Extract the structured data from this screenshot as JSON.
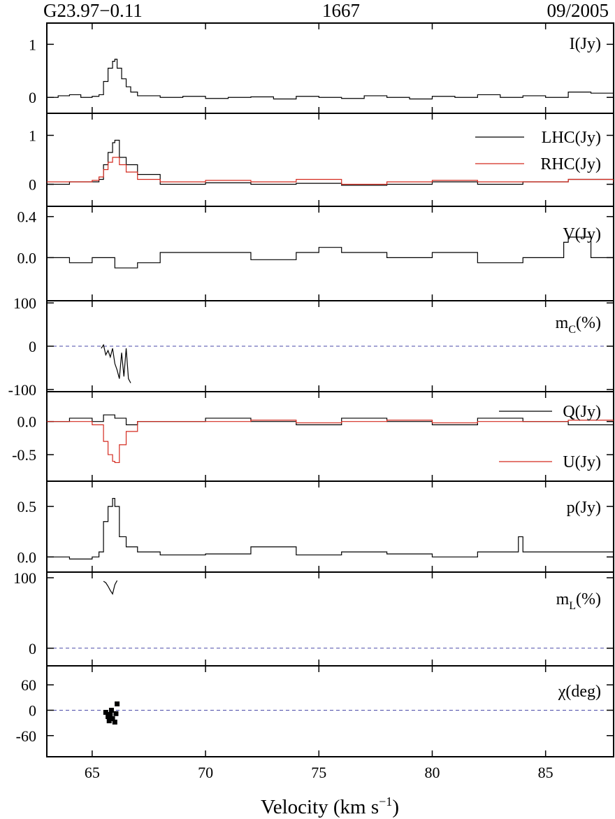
{
  "header": {
    "source": "G23.97−0.11",
    "transition": "1667",
    "epoch": "09/2005"
  },
  "x_axis": {
    "label": "Velocity (km s",
    "label_sup": "−1",
    "label_close": ")",
    "range": [
      63,
      88
    ],
    "ticks": [
      {
        "v": 65,
        "label": "65"
      },
      {
        "v": 70,
        "label": "70"
      },
      {
        "v": 75,
        "label": "75"
      },
      {
        "v": 80,
        "label": "80"
      },
      {
        "v": 85,
        "label": "85"
      }
    ]
  },
  "colors": {
    "lhc": "#000000",
    "rhc": "#d42a1f",
    "zero_line": "#4a4aa8"
  },
  "panels": [
    {
      "id": "stokes-i",
      "label": "I(Jy)",
      "ylim": [
        -0.3,
        1.4
      ],
      "yticks": [
        {
          "v": 1,
          "label": "1"
        },
        {
          "v": 0,
          "label": "0"
        }
      ],
      "legend": []
    },
    {
      "id": "lhc-rhc",
      "label": "",
      "ylim": [
        -0.45,
        1.45
      ],
      "yticks": [
        {
          "v": 1,
          "label": "1"
        },
        {
          "v": 0,
          "label": "0"
        }
      ],
      "legend": [
        {
          "name": "LHC(Jy)",
          "color": "#000000"
        },
        {
          "name": "RHC(Jy)",
          "color": "#d42a1f"
        }
      ]
    },
    {
      "id": "stokes-v",
      "label": "V(Jy)",
      "ylim": [
        -0.42,
        0.5
      ],
      "yticks": [
        {
          "v": 0.4,
          "label": "0.4"
        },
        {
          "v": 0.0,
          "label": "0.0"
        }
      ],
      "legend": []
    },
    {
      "id": "mc",
      "label": "m",
      "label_sub": "C",
      "label_end": "(%)",
      "ylim": [
        -105,
        105
      ],
      "yticks": [
        {
          "v": 100,
          "label": "100"
        },
        {
          "v": 0,
          "label": "0"
        },
        {
          "v": -100,
          "label": "-100"
        }
      ],
      "zero_line": true,
      "legend": []
    },
    {
      "id": "q-u",
      "label": "",
      "ylim": [
        -0.9,
        0.45
      ],
      "yticks": [
        {
          "v": 0.0,
          "label": "0.0"
        },
        {
          "v": -0.5,
          "label": "-0.5"
        }
      ],
      "legend": [
        {
          "name": "Q(Jy)",
          "color": "#000000"
        },
        {
          "name": "U(Jy)",
          "color": "#d42a1f"
        }
      ]
    },
    {
      "id": "p",
      "label": "p(Jy)",
      "ylim": [
        -0.15,
        0.75
      ],
      "yticks": [
        {
          "v": 0.5,
          "label": "0.5"
        },
        {
          "v": 0.0,
          "label": "0.0"
        }
      ],
      "legend": []
    },
    {
      "id": "ml",
      "label": "m",
      "label_sub": "L",
      "label_end": "(%)",
      "ylim": [
        -25,
        108
      ],
      "yticks": [
        {
          "v": 100,
          "label": "100"
        },
        {
          "v": 0,
          "label": "0"
        }
      ],
      "zero_line": true,
      "legend": []
    },
    {
      "id": "chi",
      "label": "χ(deg)",
      "ylim": [
        -110,
        105
      ],
      "yticks": [
        {
          "v": 60,
          "label": "60"
        },
        {
          "v": 0,
          "label": "0"
        },
        {
          "v": -60,
          "label": "-60"
        }
      ],
      "zero_line": true,
      "legend": []
    }
  ],
  "chart_data": {
    "type": "line",
    "title": "",
    "xlabel": "Velocity (km s−1)",
    "xlim": [
      63,
      88
    ],
    "panels": [
      {
        "name": "I(Jy)",
        "step": true,
        "series": [
          {
            "name": "I",
            "color": "#000000",
            "x": [
              63.0,
              63.5,
              64.0,
              64.5,
              65.0,
              65.3,
              65.5,
              65.7,
              65.9,
              66.0,
              66.1,
              66.3,
              66.5,
              66.7,
              67.0,
              68.0,
              69.0,
              70.0,
              71.0,
              72.0,
              73.0,
              74.0,
              75.0,
              76.0,
              77.0,
              78.0,
              79.0,
              80.0,
              81.0,
              82.0,
              83.0,
              84.0,
              85.0,
              86.0,
              87.0,
              88.0
            ],
            "y": [
              0.0,
              0.03,
              0.05,
              0.0,
              0.02,
              0.05,
              0.3,
              0.55,
              0.68,
              0.72,
              0.55,
              0.35,
              0.2,
              0.1,
              0.03,
              0.0,
              0.02,
              -0.02,
              0.0,
              0.01,
              -0.03,
              0.02,
              0.0,
              -0.02,
              0.03,
              0.0,
              -0.03,
              0.02,
              0.0,
              0.05,
              0.0,
              0.03,
              0.0,
              0.1,
              0.08,
              0.02
            ]
          }
        ]
      },
      {
        "name": "LHC / RHC",
        "step": true,
        "series": [
          {
            "name": "LHC(Jy)",
            "color": "#000000",
            "x": [
              63.0,
              64.0,
              65.0,
              65.3,
              65.5,
              65.7,
              65.9,
              66.0,
              66.2,
              66.5,
              67.0,
              68.0,
              70.0,
              72.0,
              74.0,
              76.0,
              78.0,
              80.0,
              82.0,
              84.0,
              86.0,
              88.0
            ],
            "y": [
              0.0,
              0.05,
              0.05,
              0.1,
              0.4,
              0.65,
              0.85,
              0.9,
              0.55,
              0.4,
              0.2,
              0.0,
              0.03,
              0.0,
              0.02,
              -0.02,
              0.0,
              0.05,
              0.0,
              0.05,
              0.1,
              0.0
            ]
          },
          {
            "name": "RHC(Jy)",
            "color": "#d42a1f",
            "x": [
              63.0,
              64.0,
              65.0,
              65.3,
              65.5,
              65.7,
              65.9,
              66.0,
              66.2,
              66.5,
              67.0,
              68.0,
              70.0,
              72.0,
              74.0,
              76.0,
              78.0,
              80.0,
              82.0,
              84.0,
              86.0,
              88.0
            ],
            "y": [
              0.05,
              0.05,
              0.08,
              0.15,
              0.3,
              0.45,
              0.55,
              0.55,
              0.4,
              0.25,
              0.1,
              0.05,
              0.08,
              0.05,
              0.1,
              0.0,
              0.05,
              0.08,
              0.05,
              0.05,
              0.1,
              0.05
            ]
          }
        ]
      },
      {
        "name": "V(Jy)",
        "step": true,
        "series": [
          {
            "name": "V",
            "color": "#000000",
            "x": [
              63.0,
              64.0,
              65.0,
              66.0,
              67.0,
              68.0,
              70.0,
              72.0,
              74.0,
              75.0,
              76.0,
              78.0,
              80.0,
              82.0,
              84.0,
              85.8,
              86.0,
              87.0,
              88.0
            ],
            "y": [
              0.0,
              -0.05,
              0.0,
              -0.1,
              -0.05,
              0.05,
              0.05,
              -0.02,
              0.05,
              0.1,
              0.05,
              0.0,
              0.05,
              -0.05,
              0.0,
              0.15,
              0.2,
              0.0,
              -0.15
            ]
          }
        ]
      },
      {
        "name": "mC(%)",
        "step": false,
        "series": [
          {
            "name": "mC",
            "color": "#000000",
            "x": [
              65.4,
              65.5,
              65.6,
              65.7,
              65.8,
              65.9,
              66.0,
              66.1,
              66.2,
              66.3,
              66.4,
              66.5,
              66.6,
              66.7
            ],
            "y": [
              -5,
              3,
              -20,
              -10,
              -25,
              -5,
              -40,
              -55,
              -75,
              -15,
              -70,
              -5,
              -75,
              -85
            ]
          }
        ]
      },
      {
        "name": "Q / U",
        "step": true,
        "series": [
          {
            "name": "Q(Jy)",
            "color": "#000000",
            "x": [
              63.0,
              64.0,
              65.0,
              65.5,
              66.0,
              66.5,
              67.0,
              70.0,
              72.0,
              74.0,
              76.0,
              78.0,
              80.0,
              82.0,
              84.0,
              86.0,
              88.0
            ],
            "y": [
              0.0,
              0.05,
              0.0,
              0.1,
              0.05,
              -0.05,
              0.0,
              0.05,
              0.0,
              -0.05,
              0.05,
              0.0,
              -0.05,
              0.05,
              0.0,
              -0.05,
              0.1
            ]
          },
          {
            "name": "U(Jy)",
            "color": "#d42a1f",
            "x": [
              63.0,
              64.0,
              65.0,
              65.5,
              65.7,
              65.9,
              66.0,
              66.2,
              66.5,
              67.0,
              70.0,
              72.0,
              74.0,
              76.0,
              78.0,
              80.0,
              82.0,
              84.0,
              86.0,
              88.0
            ],
            "y": [
              0.0,
              0.0,
              -0.05,
              -0.3,
              -0.5,
              -0.6,
              -0.62,
              -0.35,
              -0.15,
              0.0,
              0.0,
              0.02,
              -0.02,
              0.0,
              0.02,
              -0.02,
              0.0,
              0.0,
              0.02,
              0.0
            ]
          }
        ]
      },
      {
        "name": "p(Jy)",
        "step": true,
        "series": [
          {
            "name": "p",
            "color": "#000000",
            "x": [
              63.0,
              64.0,
              65.0,
              65.3,
              65.5,
              65.7,
              65.9,
              66.0,
              66.2,
              66.5,
              67.0,
              68.0,
              70.0,
              72.0,
              74.0,
              76.0,
              78.0,
              80.0,
              82.0,
              83.8,
              84.0,
              86.0,
              88.0
            ],
            "y": [
              0.0,
              -0.02,
              0.0,
              0.05,
              0.35,
              0.5,
              0.58,
              0.5,
              0.2,
              0.1,
              0.05,
              0.02,
              0.03,
              0.1,
              0.02,
              0.05,
              0.03,
              0.0,
              0.05,
              0.2,
              0.05,
              0.05,
              0.18
            ]
          }
        ]
      },
      {
        "name": "mL(%)",
        "step": false,
        "series": [
          {
            "name": "mL",
            "color": "#000000",
            "x": [
              65.5,
              65.6,
              65.7,
              65.8,
              65.9,
              66.0,
              66.1
            ],
            "y": [
              95,
              93,
              88,
              82,
              77,
              90,
              96
            ]
          }
        ]
      },
      {
        "name": "χ(deg)",
        "step": false,
        "markers": "square",
        "series": [
          {
            "name": "chi",
            "color": "#000000",
            "x": [
              65.6,
              65.7,
              65.75,
              65.8,
              65.85,
              65.9,
              66.0,
              66.05,
              66.1
            ],
            "y": [
              -5,
              -15,
              -25,
              -10,
              0,
              -20,
              -28,
              -8,
              15
            ]
          }
        ]
      }
    ]
  }
}
